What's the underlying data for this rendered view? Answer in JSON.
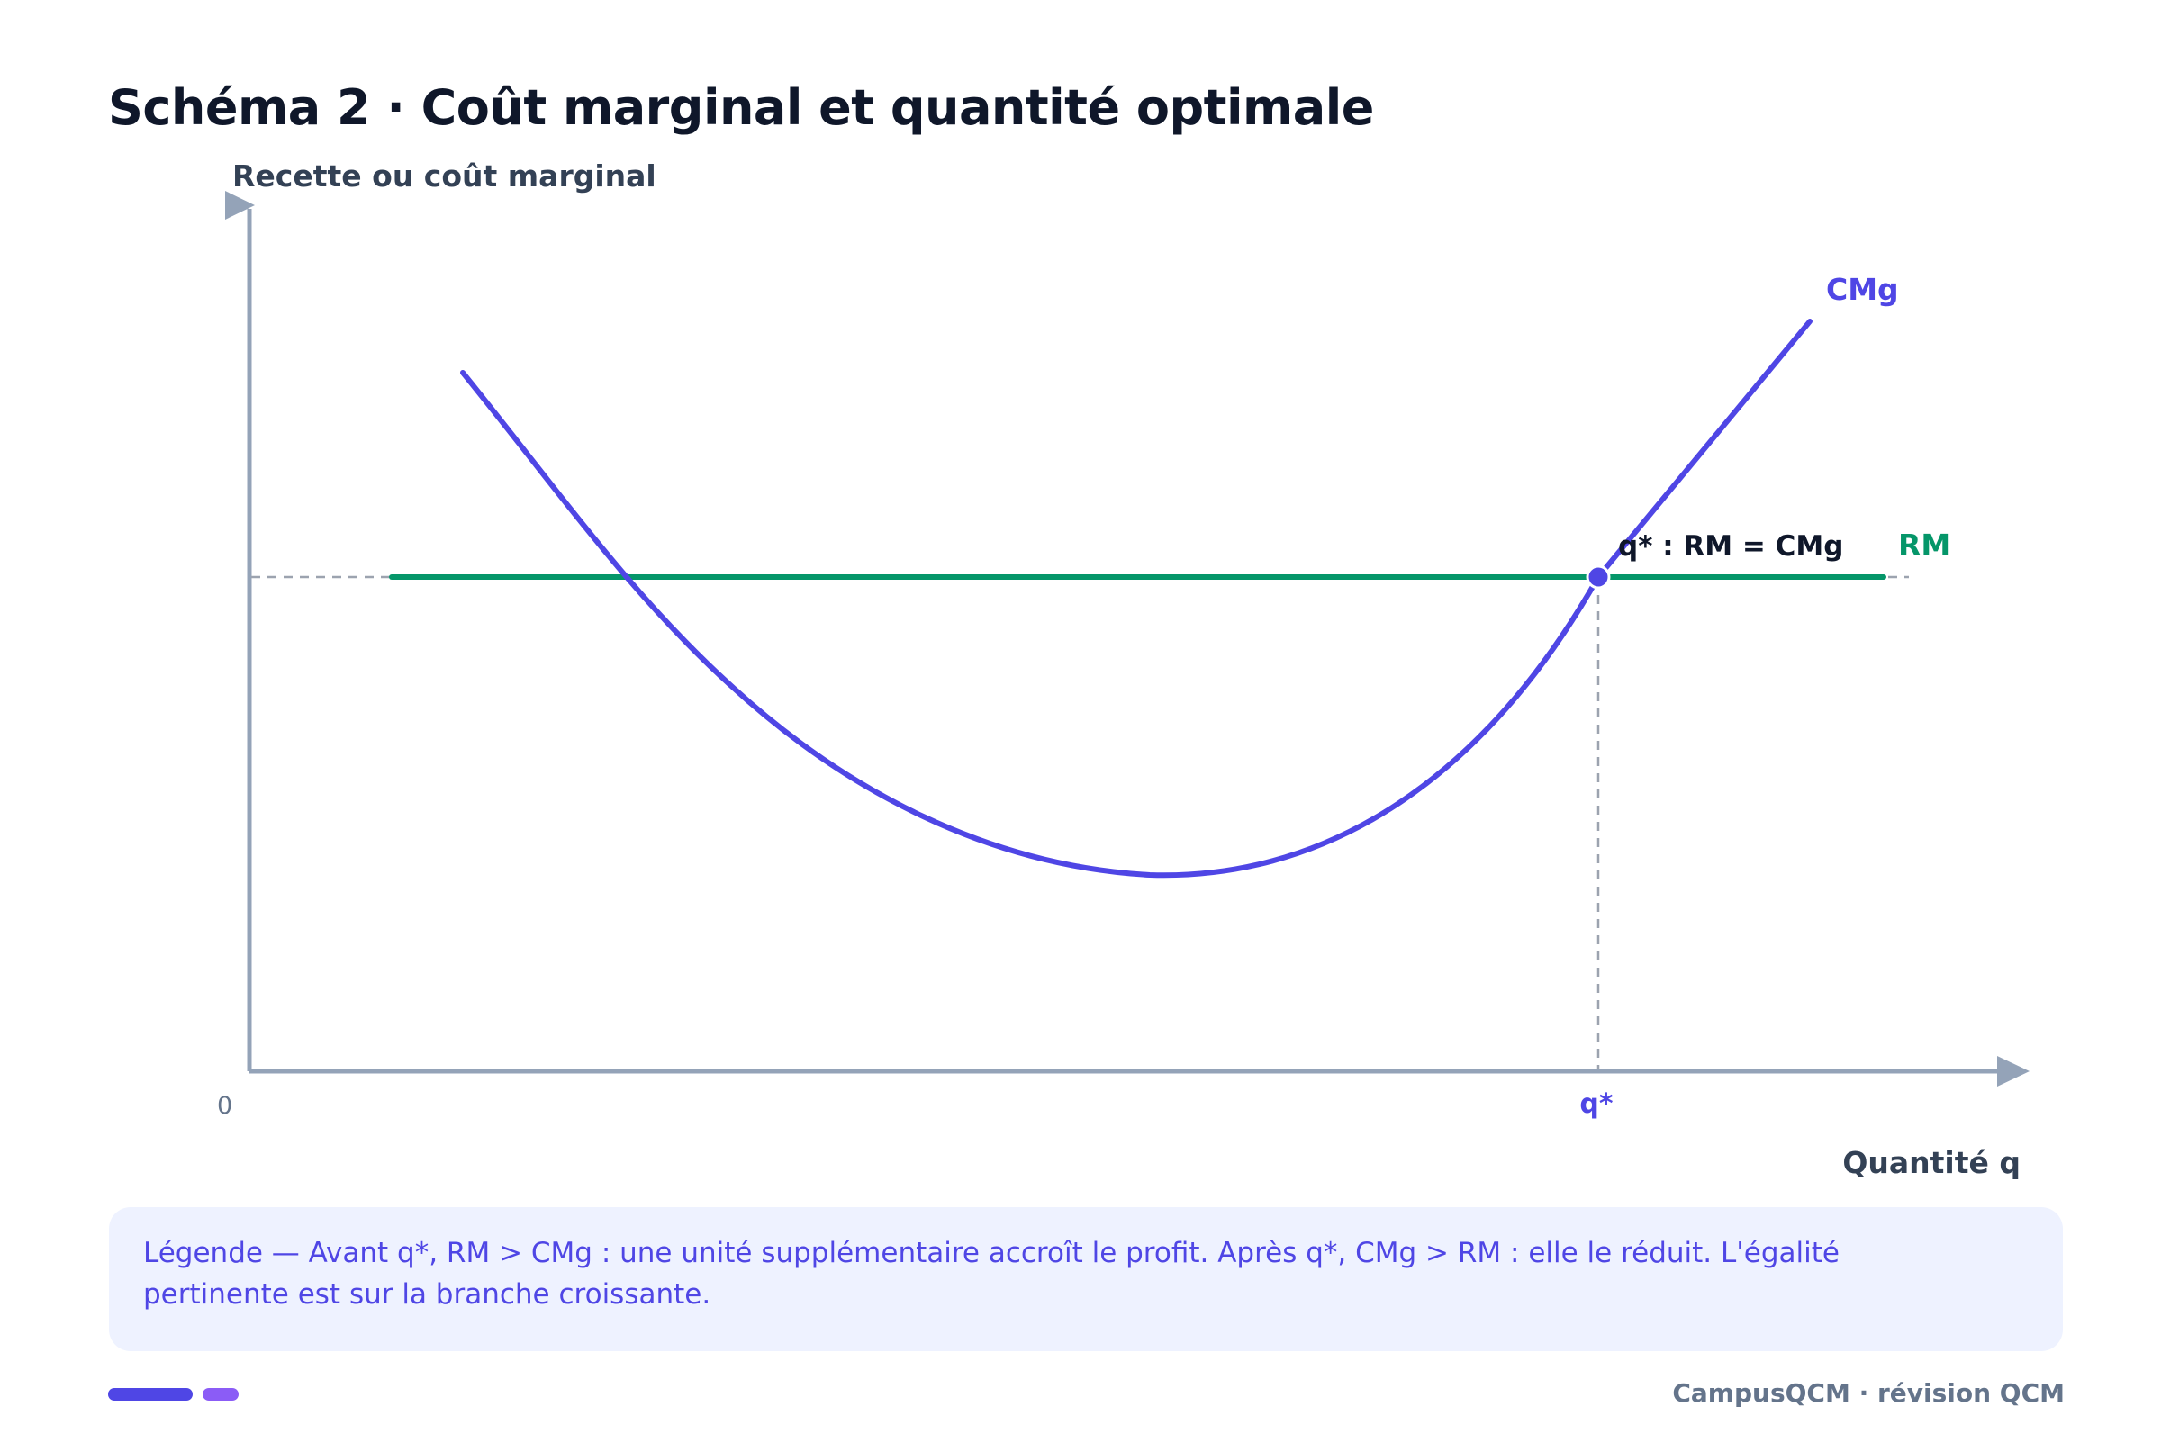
{
  "title": "Schéma 2 · Coût marginal et quantité optimale",
  "diagram": {
    "y_axis_label": "Recette ou coût marginal",
    "x_axis_label": "Quantité q",
    "origin_label": "0",
    "q_star_tick": "q*",
    "cmg_label": "CMg",
    "rm_label": "RM",
    "equilibrium_label": "q* : RM = CMg",
    "colors": {
      "cmg": "#4f46e5",
      "rm": "#059669",
      "axis": "#94a3b8",
      "guide": "#9ca3af",
      "text_dark": "#0f172a"
    }
  },
  "legend": {
    "text": "Légende — Avant q*, RM > CMg : une unité supplémentaire accroît le profit. Après q*, CMg > RM : elle le réduit. L'égalité pertinente est sur la branche croissante."
  },
  "footer": {
    "brand": "CampusQCM · révision QCM"
  }
}
